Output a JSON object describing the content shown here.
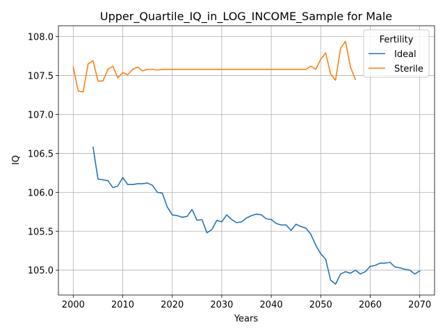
{
  "chart_data": {
    "type": "line",
    "title": "Upper_Quartile_IQ_in_LOG_INCOME_Sample for Male",
    "xlabel": "Years",
    "ylabel": "IQ",
    "xlim": [
      1997,
      2073
    ],
    "ylim": [
      104.68,
      108.14
    ],
    "xticks": [
      2000,
      2010,
      2020,
      2030,
      2040,
      2050,
      2060,
      2070
    ],
    "yticks": [
      105.0,
      105.5,
      106.0,
      106.5,
      107.0,
      107.5,
      108.0
    ],
    "xtick_labels": [
      "2000",
      "2010",
      "2020",
      "2030",
      "2040",
      "2050",
      "2060",
      "2070"
    ],
    "ytick_labels": [
      "105.0",
      "105.5",
      "106.0",
      "106.5",
      "107.0",
      "107.5",
      "108.0"
    ],
    "grid": true,
    "legend": {
      "title": "Fertility",
      "placement": "top-right"
    },
    "series": [
      {
        "name": "Ideal",
        "color": "#1f77b4",
        "x": [
          2004,
          2005,
          2006,
          2007,
          2008,
          2009,
          2010,
          2011,
          2012,
          2013,
          2014,
          2015,
          2016,
          2017,
          2018,
          2019,
          2020,
          2021,
          2022,
          2023,
          2024,
          2025,
          2026,
          2027,
          2028,
          2029,
          2030,
          2031,
          2032,
          2033,
          2034,
          2035,
          2036,
          2037,
          2038,
          2039,
          2040,
          2041,
          2042,
          2043,
          2044,
          2045,
          2046,
          2047,
          2048,
          2049,
          2050,
          2051,
          2052,
          2053,
          2054,
          2055,
          2056,
          2057,
          2058,
          2059,
          2060,
          2061,
          2062,
          2063,
          2064,
          2065,
          2066,
          2067,
          2068,
          2069,
          2070
        ],
        "y": [
          106.58,
          106.17,
          106.16,
          106.15,
          106.06,
          106.08,
          106.19,
          106.1,
          106.1,
          106.11,
          106.11,
          106.12,
          106.09,
          106.0,
          105.99,
          105.81,
          105.71,
          105.7,
          105.68,
          105.69,
          105.78,
          105.64,
          105.65,
          105.48,
          105.52,
          105.64,
          105.62,
          105.71,
          105.65,
          105.61,
          105.62,
          105.67,
          105.7,
          105.72,
          105.71,
          105.66,
          105.65,
          105.6,
          105.58,
          105.58,
          105.51,
          105.59,
          105.56,
          105.54,
          105.46,
          105.32,
          105.21,
          105.14,
          104.87,
          104.82,
          104.95,
          104.98,
          104.96,
          105.0,
          104.95,
          104.98,
          105.05,
          105.06,
          105.09,
          105.09,
          105.1,
          105.04,
          105.03,
          105.01,
          105.0,
          104.95,
          104.99
        ]
      },
      {
        "name": "Sterile",
        "color": "#ff7f0e",
        "x": [
          2000,
          2001,
          2002,
          2003,
          2004,
          2005,
          2006,
          2007,
          2008,
          2009,
          2010,
          2011,
          2012,
          2013,
          2014,
          2015,
          2016,
          2017,
          2018,
          2019,
          2020,
          2021,
          2022,
          2023,
          2024,
          2025,
          2026,
          2027,
          2028,
          2029,
          2030,
          2031,
          2032,
          2033,
          2034,
          2035,
          2036,
          2037,
          2038,
          2039,
          2040,
          2041,
          2042,
          2043,
          2044,
          2045,
          2046,
          2047,
          2048,
          2049,
          2050,
          2051,
          2052,
          2053,
          2054,
          2055,
          2056,
          2057
        ],
        "y": [
          107.61,
          107.3,
          107.29,
          107.65,
          107.69,
          107.43,
          107.43,
          107.58,
          107.62,
          107.47,
          107.54,
          107.51,
          107.58,
          107.61,
          107.56,
          107.58,
          107.58,
          107.57,
          107.58,
          107.58,
          107.58,
          107.58,
          107.58,
          107.58,
          107.58,
          107.58,
          107.58,
          107.58,
          107.58,
          107.58,
          107.58,
          107.58,
          107.58,
          107.58,
          107.58,
          107.58,
          107.58,
          107.58,
          107.58,
          107.58,
          107.58,
          107.58,
          107.58,
          107.58,
          107.58,
          107.58,
          107.58,
          107.58,
          107.62,
          107.58,
          107.71,
          107.79,
          107.52,
          107.44,
          107.85,
          107.94,
          107.61,
          107.45
        ]
      }
    ]
  }
}
